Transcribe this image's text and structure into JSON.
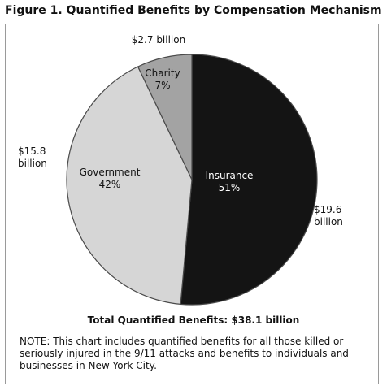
{
  "figure_title": "Figure 1. Quantified Benefits by Compensation Mechanism",
  "total_label": "Total Quantified Benefits: $38.1 billion",
  "note": "NOTE: This chart includes quantified benefits for all those killed or seriously injured in the 9/11 attacks and benefits to individuals and businesses in New York City.",
  "chart_data": {
    "type": "pie",
    "title": "Figure 1. Quantified Benefits by Compensation Mechanism",
    "slices": [
      {
        "name": "Insurance",
        "percent_label": "51%",
        "value_label": [
          "$19.6",
          "billion"
        ],
        "value": 19.6,
        "percent": 51,
        "color": "#141414"
      },
      {
        "name": "Government",
        "percent_label": "42%",
        "value_label": [
          "$15.8",
          "billion"
        ],
        "value": 15.8,
        "percent": 42,
        "color": "#d6d6d6"
      },
      {
        "name": "Charity",
        "percent_label": "7%",
        "value_label": [
          "$2.7 billion"
        ],
        "value": 2.7,
        "percent": 7,
        "color": "#a3a3a3"
      }
    ],
    "total_billion": 38.1
  }
}
